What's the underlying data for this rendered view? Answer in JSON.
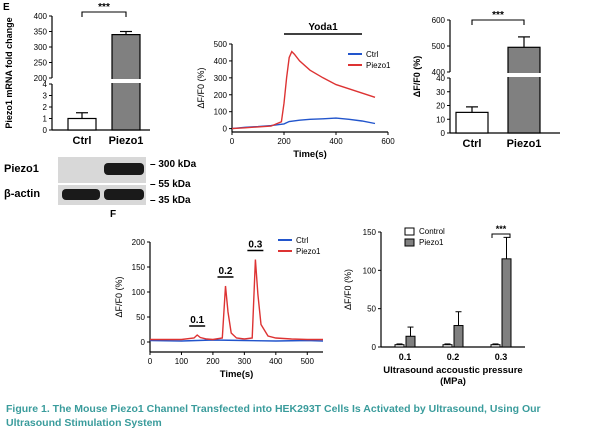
{
  "figure": {
    "caption": "Figure 1.  The Mouse Piezo1 Channel Transfected into HEK293T Cells Is Activated by Ultrasound, Using Our Ultrasound Stimulation System",
    "colors": {
      "ctrl": "#2255cc",
      "piezo1": "#dd3333",
      "bar_gray": "#808080",
      "caption": "#3a9c9c"
    }
  },
  "panels": {
    "e": "E",
    "f": "F"
  },
  "western_blot": {
    "rows": [
      {
        "label": "Piezo1"
      },
      {
        "label": "β-actin"
      }
    ],
    "markers": [
      "300 kDa",
      "55 kDa",
      "35 kDa"
    ]
  },
  "chart_data": [
    {
      "id": "mrna",
      "type": "bar",
      "categories": [
        "Ctrl",
        "Piezo1"
      ],
      "values": [
        1,
        340
      ],
      "errors": [
        0.5,
        10
      ],
      "ylabel": "Piezo1 mRNA fold change",
      "axis_break": [
        4,
        200
      ],
      "yticks": [
        "0",
        "1",
        "2",
        "3",
        "4",
        "200",
        "250",
        "300",
        "350",
        "400"
      ],
      "significance": "***",
      "bar_fill": [
        "#ffffff",
        "#808080"
      ]
    },
    {
      "id": "yoda_trace",
      "type": "line",
      "title": "Yoda1",
      "xlabel": "Time(s)",
      "ylabel": "ΔF/F0 (%)",
      "xlim": [
        0,
        600
      ],
      "ylim": [
        -20,
        500
      ],
      "xticks": [
        "0",
        "200",
        "400",
        "600"
      ],
      "yticks": [
        "0",
        "100",
        "200",
        "300",
        "400",
        "500"
      ],
      "series": [
        {
          "name": "Ctrl",
          "x": [
            0,
            50,
            100,
            150,
            200,
            220,
            260,
            300,
            350,
            400,
            450,
            500,
            550
          ],
          "y": [
            0,
            8,
            12,
            18,
            28,
            42,
            50,
            55,
            58,
            62,
            55,
            45,
            30
          ]
        },
        {
          "name": "Piezo1",
          "x": [
            0,
            50,
            100,
            150,
            190,
            200,
            210,
            220,
            230,
            240,
            260,
            300,
            350,
            400,
            450,
            500,
            550
          ],
          "y": [
            0,
            5,
            10,
            15,
            40,
            150,
            300,
            420,
            455,
            440,
            400,
            345,
            300,
            260,
            235,
            210,
            185
          ]
        }
      ]
    },
    {
      "id": "yoda_bar",
      "type": "bar",
      "categories": [
        "Ctrl",
        "Piezo1"
      ],
      "values": [
        15,
        495
      ],
      "errors": [
        4,
        40
      ],
      "ylabel": "ΔF/F0 (%)",
      "axis_break": [
        40,
        400
      ],
      "yticks": [
        "0",
        "10",
        "20",
        "30",
        "40",
        "400",
        "500",
        "600"
      ],
      "significance": "***",
      "bar_fill": [
        "#ffffff",
        "#808080"
      ]
    },
    {
      "id": "us_trace",
      "type": "line",
      "xlabel": "Time(s)",
      "ylabel": "ΔF/F0 (%)",
      "xlim": [
        0,
        550
      ],
      "ylim": [
        -20,
        200
      ],
      "xticks": [
        "0",
        "100",
        "200",
        "300",
        "400",
        "500"
      ],
      "yticks": [
        "0",
        "50",
        "100",
        "150",
        "200"
      ],
      "annotations": [
        {
          "text": "0.1",
          "x": 150
        },
        {
          "text": "0.2",
          "x": 240
        },
        {
          "text": "0.3",
          "x": 335
        }
      ],
      "series": [
        {
          "name": "Ctrl",
          "x": [
            0,
            100,
            200,
            300,
            400,
            500,
            550
          ],
          "y": [
            3,
            2,
            4,
            3,
            2,
            3,
            2
          ]
        },
        {
          "name": "Piezo1",
          "x": [
            0,
            100,
            140,
            150,
            160,
            180,
            200,
            230,
            240,
            248,
            258,
            275,
            300,
            325,
            335,
            343,
            353,
            375,
            400,
            450,
            500,
            550
          ],
          "y": [
            5,
            5,
            8,
            14,
            9,
            6,
            5,
            8,
            112,
            60,
            18,
            8,
            6,
            8,
            165,
            95,
            35,
            12,
            8,
            6,
            5,
            5
          ]
        }
      ]
    },
    {
      "id": "us_bar",
      "type": "bar",
      "categories": [
        "0.1",
        "0.2",
        "0.3"
      ],
      "xlabel": "Ultrasound accoustic pressure\n(MPa)",
      "ylabel": "ΔF/F0 (%)",
      "ylim": [
        0,
        150
      ],
      "yticks": [
        "0",
        "50",
        "100",
        "150"
      ],
      "significance": "***",
      "series": [
        {
          "name": "Control",
          "values": [
            3,
            3,
            3
          ],
          "errors": [
            1,
            1,
            1
          ]
        },
        {
          "name": "Piezo1",
          "values": [
            14,
            28,
            115
          ],
          "errors": [
            12,
            18,
            28
          ]
        }
      ]
    }
  ]
}
